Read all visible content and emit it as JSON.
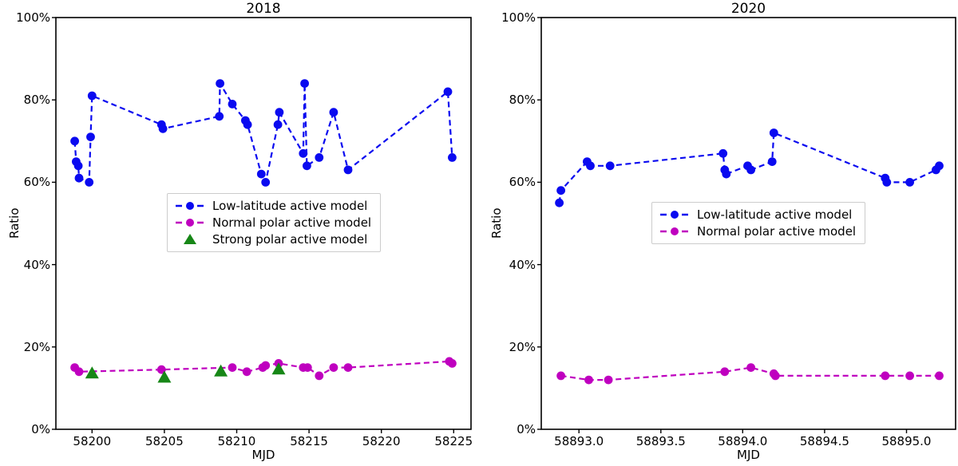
{
  "figure": {
    "background": "#ffffff",
    "text_color": "#000000",
    "spine_color": "#000000"
  },
  "chart_data": [
    {
      "type": "line",
      "title": "2018",
      "xlabel": "MJD",
      "ylabel": "Ratio",
      "xlim": [
        58197.5,
        58226.2
      ],
      "ylim": [
        0,
        100
      ],
      "xticks": [
        58200,
        58205,
        58210,
        58215,
        58220,
        58225
      ],
      "xtick_labels": [
        "58200",
        "58205",
        "58210",
        "58215",
        "58220",
        "58225"
      ],
      "yticks": [
        0,
        20,
        40,
        60,
        80,
        100
      ],
      "ytick_labels": [
        "0%",
        "20%",
        "40%",
        "60%",
        "80%",
        "100%"
      ],
      "grid": false,
      "legend_position": "inside center-left",
      "series": [
        {
          "name": "Low-latitude active model",
          "color": "#0a0af0",
          "marker": "circle",
          "line": "dashed",
          "points": [
            [
              58198.8,
              70
            ],
            [
              58198.9,
              65
            ],
            [
              58199.05,
              64
            ],
            [
              58199.1,
              61
            ],
            [
              58199.8,
              60
            ],
            [
              58199.9,
              71
            ],
            [
              58200.0,
              81
            ],
            [
              58204.8,
              74
            ],
            [
              58204.9,
              73
            ],
            [
              58208.8,
              76
            ],
            [
              58208.85,
              84
            ],
            [
              58209.7,
              79
            ],
            [
              58210.6,
              75
            ],
            [
              58210.75,
              74
            ],
            [
              58211.7,
              62
            ],
            [
              58212.0,
              60
            ],
            [
              58212.85,
              74
            ],
            [
              58212.95,
              77
            ],
            [
              58214.6,
              67
            ],
            [
              58214.7,
              84
            ],
            [
              58214.85,
              64
            ],
            [
              58215.7,
              66
            ],
            [
              58216.7,
              77
            ],
            [
              58217.7,
              63
            ],
            [
              58224.6,
              82
            ],
            [
              58224.9,
              66
            ]
          ]
        },
        {
          "name": "Normal polar active model",
          "color": "#bf00bf",
          "marker": "circle",
          "line": "dashed",
          "points": [
            [
              58198.8,
              15
            ],
            [
              58199.1,
              14
            ],
            [
              58204.8,
              14.5
            ],
            [
              58209.7,
              15
            ],
            [
              58210.7,
              14
            ],
            [
              58211.8,
              15
            ],
            [
              58212.0,
              15.5
            ],
            [
              58212.9,
              16
            ],
            [
              58214.6,
              15
            ],
            [
              58214.9,
              15
            ],
            [
              58215.7,
              13
            ],
            [
              58216.7,
              15
            ],
            [
              58217.7,
              15
            ],
            [
              58224.7,
              16.5
            ],
            [
              58224.9,
              16
            ]
          ]
        },
        {
          "name": "Strong polar active model",
          "color": "#178717",
          "marker": "triangle",
          "line": "none",
          "points": [
            [
              58200.0,
              13.5
            ],
            [
              58205.0,
              12.5
            ],
            [
              58208.9,
              14
            ],
            [
              58212.9,
              14.5
            ]
          ]
        }
      ]
    },
    {
      "type": "line",
      "title": "2020",
      "xlabel": "MJD",
      "ylabel": "Ratio",
      "xlim": [
        58892.77,
        58895.3
      ],
      "ylim": [
        0,
        100
      ],
      "xticks": [
        58893.0,
        58893.5,
        58894.0,
        58894.5,
        58895.0
      ],
      "xtick_labels": [
        "58893.0",
        "58893.5",
        "58894.0",
        "58894.5",
        "58895.0"
      ],
      "yticks": [
        0,
        20,
        40,
        60,
        80,
        100
      ],
      "ytick_labels": [
        "0%",
        "20%",
        "40%",
        "60%",
        "80%",
        "100%"
      ],
      "grid": false,
      "legend_position": "inside center",
      "series": [
        {
          "name": "Low-latitude active model",
          "color": "#0a0af0",
          "marker": "circle",
          "line": "dashed",
          "points": [
            [
              58892.88,
              55
            ],
            [
              58892.89,
              58
            ],
            [
              58893.05,
              65
            ],
            [
              58893.07,
              64
            ],
            [
              58893.19,
              64
            ],
            [
              58893.88,
              67
            ],
            [
              58893.89,
              63
            ],
            [
              58893.9,
              62
            ],
            [
              58894.03,
              64
            ],
            [
              58894.05,
              63
            ],
            [
              58894.18,
              65
            ],
            [
              58894.19,
              72
            ],
            [
              58894.87,
              61
            ],
            [
              58894.88,
              60
            ],
            [
              58895.02,
              60
            ],
            [
              58895.18,
              63
            ],
            [
              58895.2,
              64
            ]
          ]
        },
        {
          "name": "Normal polar active model",
          "color": "#bf00bf",
          "marker": "circle",
          "line": "dashed",
          "points": [
            [
              58892.89,
              13
            ],
            [
              58893.06,
              12
            ],
            [
              58893.18,
              12
            ],
            [
              58893.89,
              14
            ],
            [
              58894.05,
              15
            ],
            [
              58894.19,
              13.5
            ],
            [
              58894.2,
              13
            ],
            [
              58894.87,
              13
            ],
            [
              58895.02,
              13
            ],
            [
              58895.2,
              13
            ]
          ]
        }
      ]
    }
  ]
}
